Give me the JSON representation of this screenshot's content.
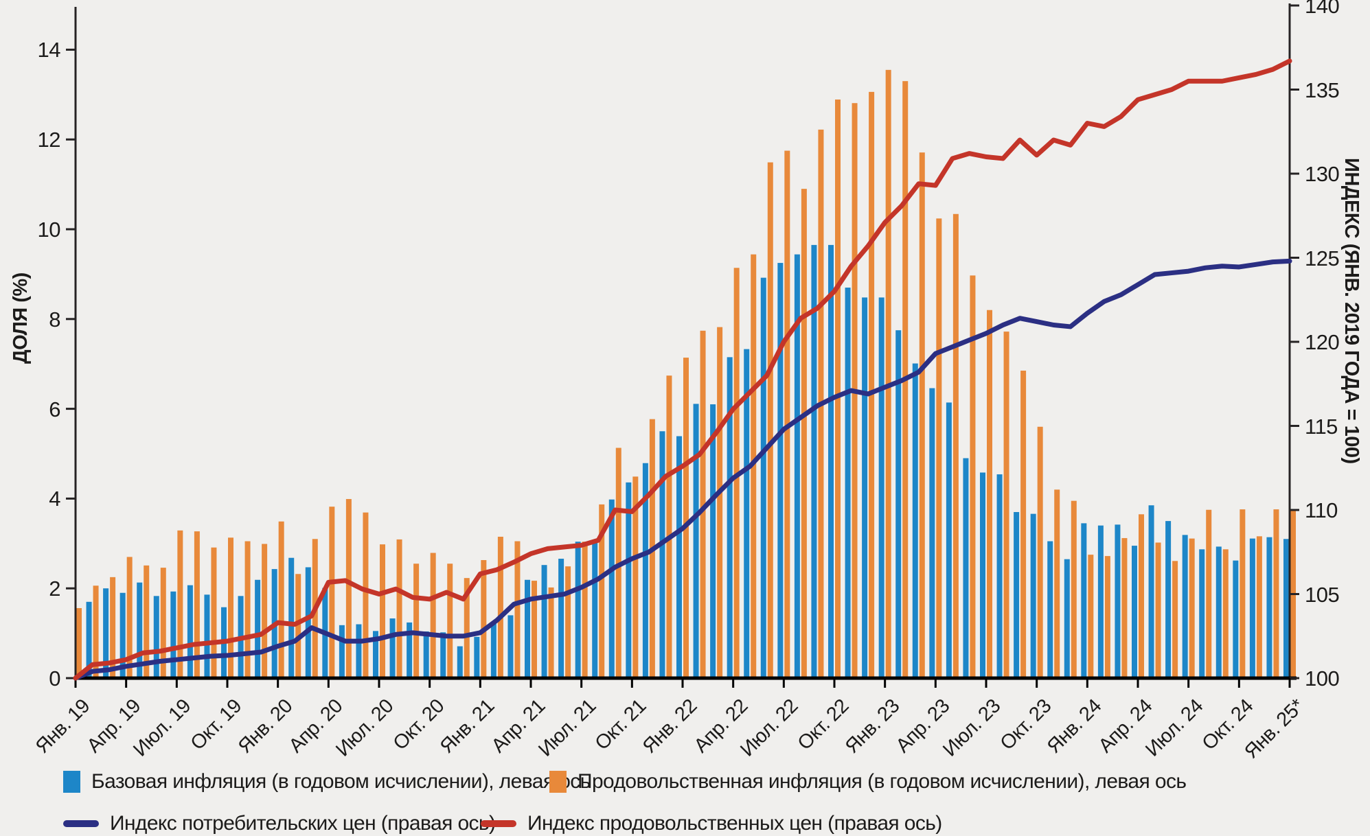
{
  "axes": {
    "left": {
      "title": "ДОЛЯ (%)",
      "ticks": [
        0,
        2,
        4,
        6,
        8,
        10,
        12,
        14
      ]
    },
    "right": {
      "title": "ИНДЕКС (ЯНВ. 2019 ГОДА = 100)",
      "ticks": [
        100,
        105,
        110,
        115,
        120,
        125,
        130,
        135,
        140
      ]
    },
    "x": {
      "tick_labels": [
        "Янв. 19",
        "Апр. 19",
        "Июл. 19",
        "Окт. 19",
        "Янв. 20",
        "Апр. 20",
        "Июл. 20",
        "Окт. 20",
        "Янв. 21",
        "Апр. 21",
        "Июл. 21",
        "Окт. 21",
        "Янв. 22",
        "Апр. 22",
        "Июл. 22",
        "Окт. 22",
        "Янв. 23",
        "Апр. 23",
        "Июл. 23",
        "Окт. 23",
        "Янв. 24",
        "Апр. 24",
        "Июл. 24",
        "Окт. 24",
        "Янв. 25*"
      ],
      "tick_every_months": 3
    }
  },
  "colors": {
    "core_bar": "#1d86c8",
    "food_bar": "#e8893a",
    "cpi_line": "#2b2f83",
    "food_line": "#c43529",
    "axis": "#262324",
    "background": "#f0efed"
  },
  "legend": [
    {
      "swatch": "square",
      "color_key": "core_bar",
      "label": "Базовая инфляция (в годовом исчислении), левая ось"
    },
    {
      "swatch": "square",
      "color_key": "food_bar",
      "label": "Продовольственная инфляция (в годовом исчислении), левая ось"
    },
    {
      "swatch": "line",
      "color_key": "cpi_line",
      "label": "Индекс потребительских цен (правая ось)"
    },
    {
      "swatch": "line",
      "color_key": "food_line",
      "label": "Индекс продовольственных цен (правая ось)"
    }
  ],
  "chart_data": {
    "type": "bar+line combo",
    "x_start": "2019-01",
    "x_end": "2025-01",
    "n_months": 73,
    "ylim_left": [
      0,
      15
    ],
    "ylim_right": [
      100,
      140
    ],
    "grid": false,
    "legend_position": "bottom",
    "series": [
      {
        "name": "Базовая инфляция (в годовом исчислении), левая ось",
        "kind": "bar",
        "axis": "left",
        "color_key": "core_bar",
        "values": [
          0.0,
          1.7,
          2.0,
          1.9,
          2.13,
          1.83,
          1.93,
          2.07,
          1.86,
          1.58,
          1.83,
          2.19,
          2.43,
          2.68,
          2.47,
          2.01,
          1.18,
          1.2,
          1.05,
          1.33,
          1.24,
          1.04,
          1.02,
          0.71,
          0.92,
          1.21,
          1.4,
          2.19,
          2.52,
          2.66,
          3.04,
          3.04,
          3.98,
          4.36,
          4.79,
          5.5,
          5.39,
          6.11,
          6.1,
          7.15,
          7.33,
          8.92,
          9.25,
          9.44,
          9.65,
          9.65,
          8.7,
          8.48,
          8.48,
          7.75,
          7.01,
          6.46,
          6.14,
          4.9,
          4.58,
          4.54,
          3.7,
          3.66,
          3.05,
          2.65,
          3.45,
          3.4,
          3.42,
          2.95,
          3.85,
          3.5,
          3.19,
          2.87,
          2.93,
          2.62,
          3.11,
          3.14,
          3.1
        ]
      },
      {
        "name": "Продовольственная инфляция (в годовом исчислении), левая ось",
        "kind": "bar",
        "axis": "left",
        "color_key": "food_bar",
        "values": [
          1.56,
          2.06,
          2.25,
          2.7,
          2.51,
          2.46,
          3.29,
          3.27,
          2.91,
          3.13,
          3.05,
          2.99,
          3.49,
          2.32,
          3.1,
          3.82,
          3.99,
          3.69,
          2.98,
          3.09,
          2.55,
          2.79,
          2.55,
          2.23,
          2.63,
          3.15,
          3.05,
          2.17,
          2.02,
          2.49,
          3.04,
          3.87,
          5.13,
          4.49,
          5.77,
          6.74,
          7.14,
          7.74,
          7.82,
          9.14,
          9.44,
          11.49,
          11.75,
          10.9,
          12.22,
          12.89,
          12.81,
          13.06,
          13.55,
          13.3,
          11.71,
          10.24,
          10.34,
          8.97,
          8.2,
          7.72,
          6.85,
          5.6,
          4.2,
          3.95,
          2.75,
          2.72,
          3.12,
          3.65,
          3.02,
          2.61,
          3.11,
          3.75,
          2.87,
          3.76,
          3.16,
          3.76,
          3.76
        ]
      },
      {
        "name": "Индекс потребительских цен (правая ось)",
        "kind": "line",
        "axis": "right",
        "color_key": "cpi_line",
        "values": [
          100.0,
          100.4,
          100.5,
          100.7,
          100.85,
          101.0,
          101.1,
          101.2,
          101.3,
          101.35,
          101.45,
          101.55,
          101.9,
          102.2,
          103.0,
          102.6,
          102.2,
          102.2,
          102.35,
          102.6,
          102.7,
          102.6,
          102.5,
          102.5,
          102.7,
          103.45,
          104.4,
          104.7,
          104.85,
          105.0,
          105.4,
          105.9,
          106.6,
          107.1,
          107.5,
          108.2,
          108.9,
          109.85,
          110.9,
          111.9,
          112.6,
          113.7,
          114.8,
          115.5,
          116.2,
          116.7,
          117.1,
          116.9,
          117.3,
          117.7,
          118.2,
          119.3,
          119.7,
          120.1,
          120.5,
          121.0,
          121.4,
          121.2,
          121.0,
          120.9,
          121.7,
          122.4,
          122.8,
          123.4,
          124.0,
          124.1,
          124.2,
          124.4,
          124.5,
          124.45,
          124.6,
          124.75,
          124.8
        ]
      },
      {
        "name": "Индекс продовольственных цен (правая ось)",
        "kind": "line",
        "axis": "right",
        "color_key": "food_line",
        "values": [
          100.0,
          100.8,
          100.9,
          101.1,
          101.5,
          101.6,
          101.8,
          102.0,
          102.1,
          102.2,
          102.4,
          102.6,
          103.3,
          103.2,
          103.7,
          105.7,
          105.8,
          105.3,
          105.0,
          105.3,
          104.8,
          104.7,
          105.1,
          104.7,
          106.2,
          106.45,
          106.9,
          107.4,
          107.7,
          107.8,
          107.9,
          108.2,
          110.0,
          109.9,
          110.9,
          112.0,
          112.6,
          113.3,
          114.6,
          116.0,
          117.0,
          118.0,
          120.0,
          121.4,
          122.0,
          123.0,
          124.5,
          125.7,
          127.1,
          128.1,
          129.4,
          129.3,
          130.9,
          131.2,
          131.0,
          130.9,
          132.0,
          131.1,
          132.0,
          131.7,
          133.0,
          132.8,
          133.4,
          134.4,
          134.7,
          135.0,
          135.5,
          135.5,
          135.5,
          135.7,
          135.9,
          136.2,
          136.7
        ]
      }
    ]
  }
}
